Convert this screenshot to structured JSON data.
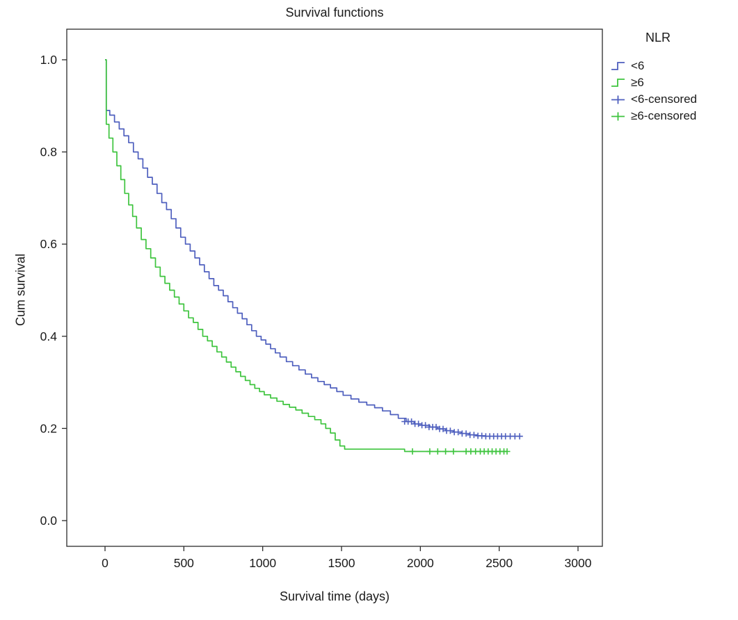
{
  "title": "Survival functions",
  "legend": {
    "title": "NLR",
    "items": [
      {
        "label": "<6",
        "color": "#4e5fbe",
        "type": "step"
      },
      {
        "label": "≥6",
        "color": "#3ec43e",
        "type": "step"
      },
      {
        "label": "<6-censored",
        "color": "#4e5fbe",
        "type": "censored"
      },
      {
        "label": "≥6-censored",
        "color": "#3ec43e",
        "type": "censored"
      }
    ]
  },
  "chart_data": {
    "type": "line",
    "subtype": "kaplan-meier-step",
    "title": "Survival functions",
    "xlabel": "Survival time (days)",
    "ylabel": "Cum survival",
    "legend_title": "NLR",
    "legend_position": "right-outside",
    "grid": false,
    "xlim": [
      -250,
      3150
    ],
    "ylim": [
      -0.06,
      1.06
    ],
    "xticks": [
      0,
      500,
      1000,
      1500,
      2000,
      2500,
      3000
    ],
    "yticks": [
      "0.0",
      "0.2",
      "0.4",
      "0.6",
      "0.8",
      "1.0"
    ],
    "series": [
      {
        "name": "<6",
        "color": "#4e5fbe",
        "points": [
          [
            0,
            1.0
          ],
          [
            8,
            0.89
          ],
          [
            30,
            0.88
          ],
          [
            60,
            0.865
          ],
          [
            90,
            0.85
          ],
          [
            120,
            0.835
          ],
          [
            150,
            0.82
          ],
          [
            180,
            0.8
          ],
          [
            210,
            0.785
          ],
          [
            240,
            0.765
          ],
          [
            270,
            0.745
          ],
          [
            300,
            0.73
          ],
          [
            330,
            0.71
          ],
          [
            360,
            0.69
          ],
          [
            390,
            0.675
          ],
          [
            420,
            0.655
          ],
          [
            450,
            0.635
          ],
          [
            480,
            0.615
          ],
          [
            510,
            0.6
          ],
          [
            540,
            0.585
          ],
          [
            570,
            0.57
          ],
          [
            600,
            0.555
          ],
          [
            630,
            0.54
          ],
          [
            660,
            0.525
          ],
          [
            690,
            0.51
          ],
          [
            720,
            0.5
          ],
          [
            750,
            0.488
          ],
          [
            780,
            0.475
          ],
          [
            810,
            0.462
          ],
          [
            840,
            0.45
          ],
          [
            870,
            0.438
          ],
          [
            900,
            0.425
          ],
          [
            930,
            0.412
          ],
          [
            960,
            0.4
          ],
          [
            990,
            0.392
          ],
          [
            1020,
            0.383
          ],
          [
            1050,
            0.373
          ],
          [
            1080,
            0.364
          ],
          [
            1110,
            0.355
          ],
          [
            1150,
            0.345
          ],
          [
            1190,
            0.336
          ],
          [
            1230,
            0.327
          ],
          [
            1270,
            0.318
          ],
          [
            1310,
            0.31
          ],
          [
            1350,
            0.302
          ],
          [
            1390,
            0.295
          ],
          [
            1430,
            0.288
          ],
          [
            1470,
            0.28
          ],
          [
            1510,
            0.272
          ],
          [
            1560,
            0.264
          ],
          [
            1610,
            0.257
          ],
          [
            1660,
            0.251
          ],
          [
            1710,
            0.245
          ],
          [
            1760,
            0.238
          ],
          [
            1810,
            0.23
          ],
          [
            1860,
            0.222
          ],
          [
            1910,
            0.215
          ],
          [
            1960,
            0.21
          ],
          [
            2010,
            0.207
          ],
          [
            2060,
            0.203
          ],
          [
            2110,
            0.199
          ],
          [
            2160,
            0.195
          ],
          [
            2210,
            0.192
          ],
          [
            2260,
            0.189
          ],
          [
            2310,
            0.186
          ],
          [
            2360,
            0.184
          ],
          [
            2410,
            0.183
          ],
          [
            2650,
            0.183
          ]
        ]
      },
      {
        "name": "≥6",
        "color": "#3ec43e",
        "points": [
          [
            0,
            1.0
          ],
          [
            8,
            0.86
          ],
          [
            25,
            0.83
          ],
          [
            50,
            0.8
          ],
          [
            75,
            0.77
          ],
          [
            100,
            0.74
          ],
          [
            125,
            0.71
          ],
          [
            150,
            0.685
          ],
          [
            175,
            0.66
          ],
          [
            200,
            0.635
          ],
          [
            230,
            0.61
          ],
          [
            260,
            0.59
          ],
          [
            290,
            0.57
          ],
          [
            320,
            0.55
          ],
          [
            350,
            0.53
          ],
          [
            380,
            0.515
          ],
          [
            410,
            0.5
          ],
          [
            440,
            0.485
          ],
          [
            470,
            0.47
          ],
          [
            500,
            0.455
          ],
          [
            530,
            0.44
          ],
          [
            560,
            0.43
          ],
          [
            590,
            0.415
          ],
          [
            620,
            0.4
          ],
          [
            650,
            0.39
          ],
          [
            680,
            0.378
          ],
          [
            710,
            0.366
          ],
          [
            740,
            0.355
          ],
          [
            770,
            0.344
          ],
          [
            800,
            0.333
          ],
          [
            830,
            0.323
          ],
          [
            860,
            0.313
          ],
          [
            890,
            0.304
          ],
          [
            920,
            0.295
          ],
          [
            950,
            0.287
          ],
          [
            980,
            0.28
          ],
          [
            1010,
            0.273
          ],
          [
            1050,
            0.266
          ],
          [
            1090,
            0.259
          ],
          [
            1130,
            0.252
          ],
          [
            1170,
            0.246
          ],
          [
            1210,
            0.24
          ],
          [
            1250,
            0.233
          ],
          [
            1290,
            0.226
          ],
          [
            1330,
            0.219
          ],
          [
            1370,
            0.21
          ],
          [
            1400,
            0.2
          ],
          [
            1430,
            0.19
          ],
          [
            1460,
            0.175
          ],
          [
            1490,
            0.162
          ],
          [
            1520,
            0.155
          ],
          [
            1900,
            0.15
          ],
          [
            2550,
            0.15
          ]
        ]
      }
    ],
    "censored": [
      {
        "series": "<6",
        "color": "#4e5fbe",
        "points": [
          [
            1900,
            0.215
          ],
          [
            1922,
            0.215
          ],
          [
            1944,
            0.215
          ],
          [
            1966,
            0.21
          ],
          [
            1988,
            0.21
          ],
          [
            2010,
            0.207
          ],
          [
            2032,
            0.207
          ],
          [
            2055,
            0.203
          ],
          [
            2078,
            0.203
          ],
          [
            2100,
            0.203
          ],
          [
            2122,
            0.199
          ],
          [
            2144,
            0.199
          ],
          [
            2166,
            0.195
          ],
          [
            2190,
            0.195
          ],
          [
            2215,
            0.192
          ],
          [
            2240,
            0.192
          ],
          [
            2265,
            0.189
          ],
          [
            2290,
            0.189
          ],
          [
            2315,
            0.186
          ],
          [
            2340,
            0.186
          ],
          [
            2365,
            0.184
          ],
          [
            2390,
            0.184
          ],
          [
            2415,
            0.183
          ],
          [
            2440,
            0.183
          ],
          [
            2465,
            0.183
          ],
          [
            2490,
            0.183
          ],
          [
            2515,
            0.183
          ],
          [
            2540,
            0.183
          ],
          [
            2570,
            0.183
          ],
          [
            2600,
            0.183
          ],
          [
            2630,
            0.183
          ]
        ]
      },
      {
        "series": "≥6",
        "color": "#3ec43e",
        "points": [
          [
            1950,
            0.15
          ],
          [
            2060,
            0.15
          ],
          [
            2110,
            0.15
          ],
          [
            2160,
            0.15
          ],
          [
            2210,
            0.15
          ],
          [
            2290,
            0.15
          ],
          [
            2320,
            0.15
          ],
          [
            2350,
            0.15
          ],
          [
            2380,
            0.15
          ],
          [
            2405,
            0.15
          ],
          [
            2430,
            0.15
          ],
          [
            2455,
            0.15
          ],
          [
            2480,
            0.15
          ],
          [
            2505,
            0.15
          ],
          [
            2530,
            0.15
          ],
          [
            2550,
            0.15
          ]
        ]
      }
    ]
  }
}
